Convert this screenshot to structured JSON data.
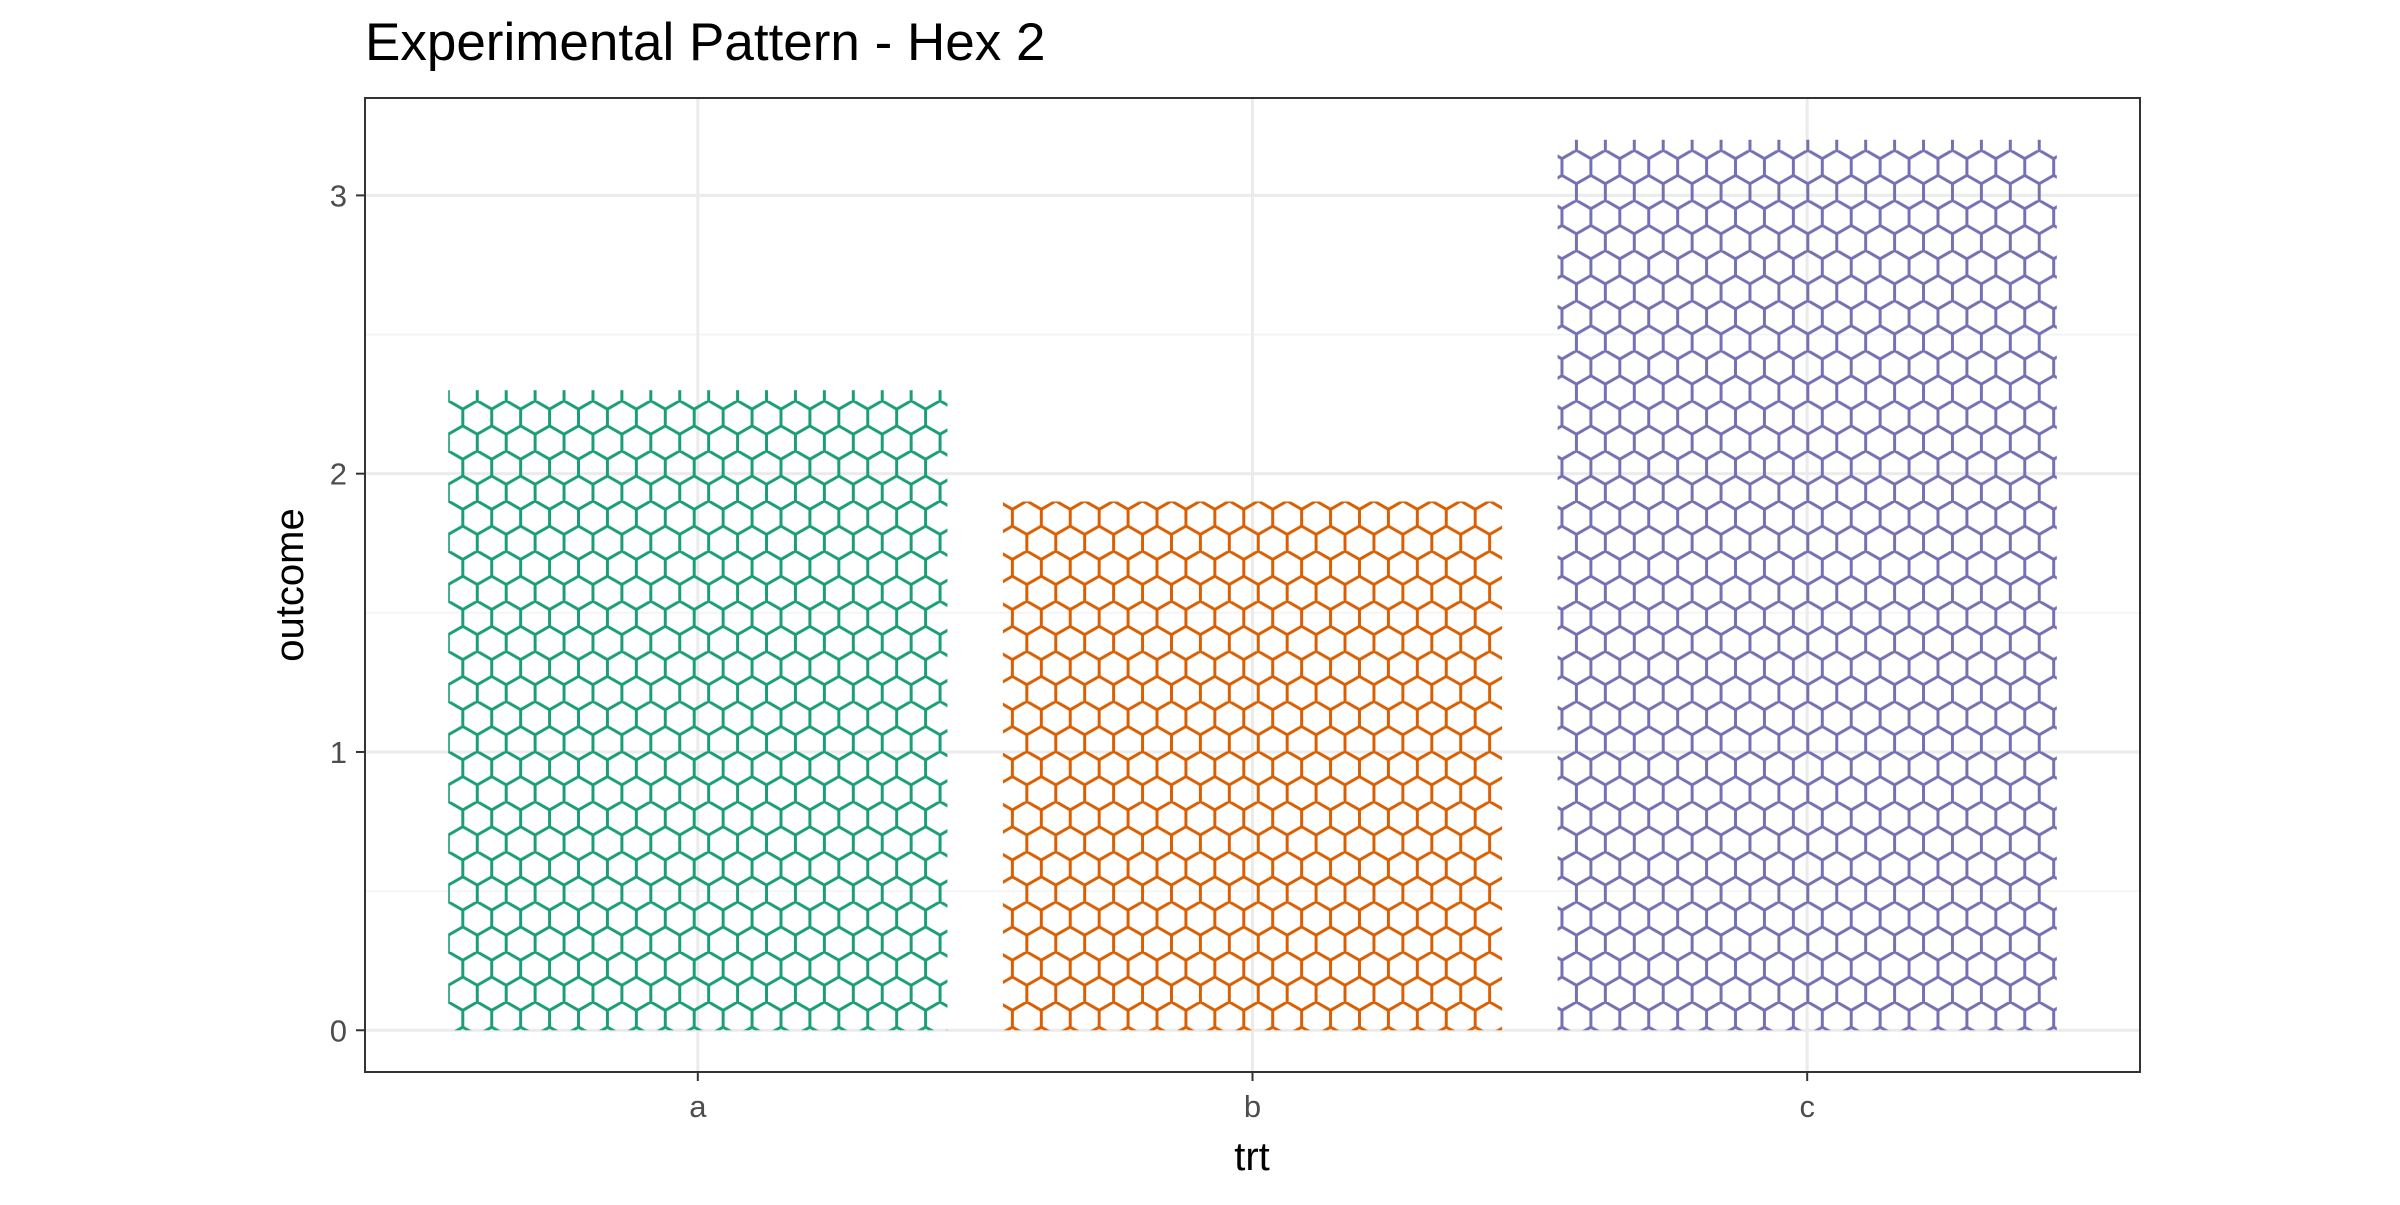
{
  "chart_data": {
    "type": "bar",
    "title": "Experimental Pattern - Hex 2",
    "xlabel": "trt",
    "ylabel": "outcome",
    "categories": [
      "a",
      "b",
      "c"
    ],
    "values": [
      2.3,
      1.9,
      3.2
    ],
    "colors": [
      "#1b9e77",
      "#d95f02",
      "#7570b3"
    ],
    "fill_pattern": "hexagon",
    "ylim": [
      -0.15,
      3.35
    ],
    "yticks": [
      0,
      1,
      2,
      3
    ],
    "ytick_labels": [
      "0",
      "1",
      "2",
      "3"
    ],
    "grid": true,
    "legend": "none"
  }
}
